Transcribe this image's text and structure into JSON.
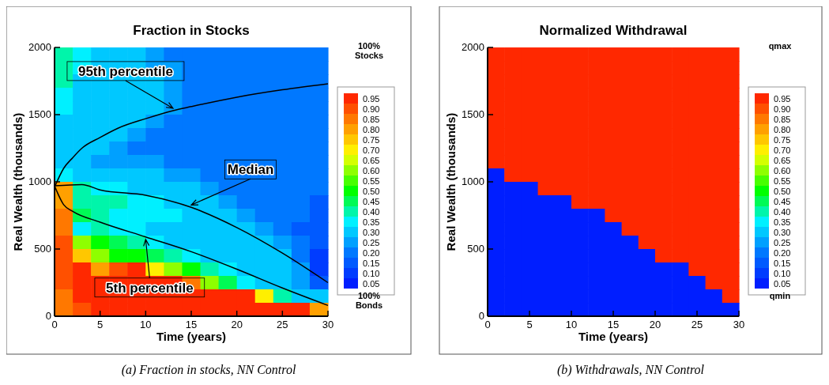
{
  "chart_data": [
    {
      "type": "heatmap",
      "title": "Fraction in Stocks",
      "xlabel": "Time (years)",
      "ylabel": "Real Wealth (thousands)",
      "xlim": [
        0,
        30
      ],
      "xticks": [
        0,
        5,
        10,
        15,
        20,
        25,
        30
      ],
      "ylim": [
        0,
        2000
      ],
      "yticks": [
        0,
        500,
        1000,
        1500,
        2000
      ],
      "clim": [
        0.025,
        0.975
      ],
      "cticks": [
        {
          "value": 0.05,
          "label": "0.05"
        },
        {
          "value": 0.1,
          "label": "0.10"
        },
        {
          "value": 0.15,
          "label": "0.15"
        },
        {
          "value": 0.2,
          "label": "0.20"
        },
        {
          "value": 0.25,
          "label": "0.25"
        },
        {
          "value": 0.3,
          "label": "0.30"
        },
        {
          "value": 0.35,
          "label": "0.35"
        },
        {
          "value": 0.4,
          "label": "0.40"
        },
        {
          "value": 0.45,
          "label": "0.45"
        },
        {
          "value": 0.5,
          "label": "0.50"
        },
        {
          "value": 0.55,
          "label": "0.55"
        },
        {
          "value": 0.6,
          "label": "0.60"
        },
        {
          "value": 0.65,
          "label": "0.65"
        },
        {
          "value": 0.7,
          "label": "0.70"
        },
        {
          "value": 0.75,
          "label": "0.75"
        },
        {
          "value": 0.8,
          "label": "0.80"
        },
        {
          "value": 0.85,
          "label": "0.85"
        },
        {
          "value": 0.9,
          "label": "0.90"
        },
        {
          "value": 0.95,
          "label": "0.95"
        }
      ],
      "x": [
        1,
        3,
        5,
        7,
        9,
        11,
        13,
        15,
        17,
        19,
        21,
        23,
        25,
        27,
        29
      ],
      "y": [
        1950,
        1850,
        1750,
        1650,
        1550,
        1450,
        1350,
        1250,
        1150,
        1050,
        950,
        850,
        750,
        650,
        550,
        450,
        350,
        250,
        150,
        50
      ],
      "cells": [
        [
          0.4,
          0.35,
          0.3,
          0.3,
          0.3,
          0.25,
          0.2,
          0.2,
          0.2,
          0.2,
          0.2,
          0.2,
          0.2,
          0.2,
          0.2
        ],
        [
          0.4,
          0.35,
          0.3,
          0.3,
          0.3,
          0.25,
          0.25,
          0.2,
          0.2,
          0.2,
          0.2,
          0.2,
          0.2,
          0.2,
          0.2
        ],
        [
          0.4,
          0.3,
          0.3,
          0.3,
          0.3,
          0.3,
          0.25,
          0.2,
          0.2,
          0.2,
          0.2,
          0.2,
          0.2,
          0.2,
          0.2
        ],
        [
          0.35,
          0.3,
          0.3,
          0.3,
          0.3,
          0.3,
          0.25,
          0.2,
          0.2,
          0.2,
          0.2,
          0.2,
          0.2,
          0.2,
          0.2
        ],
        [
          0.35,
          0.3,
          0.3,
          0.3,
          0.3,
          0.3,
          0.25,
          0.2,
          0.2,
          0.2,
          0.2,
          0.2,
          0.2,
          0.2,
          0.2
        ],
        [
          0.3,
          0.3,
          0.3,
          0.3,
          0.3,
          0.25,
          0.2,
          0.2,
          0.2,
          0.2,
          0.2,
          0.2,
          0.2,
          0.2,
          0.2
        ],
        [
          0.3,
          0.3,
          0.3,
          0.3,
          0.25,
          0.2,
          0.2,
          0.2,
          0.2,
          0.2,
          0.2,
          0.2,
          0.2,
          0.2,
          0.2
        ],
        [
          0.3,
          0.3,
          0.3,
          0.25,
          0.2,
          0.2,
          0.2,
          0.2,
          0.2,
          0.2,
          0.2,
          0.2,
          0.2,
          0.2,
          0.2
        ],
        [
          0.3,
          0.3,
          0.25,
          0.25,
          0.25,
          0.25,
          0.2,
          0.2,
          0.2,
          0.2,
          0.2,
          0.2,
          0.2,
          0.2,
          0.2
        ],
        [
          0.35,
          0.3,
          0.3,
          0.3,
          0.3,
          0.3,
          0.25,
          0.25,
          0.2,
          0.2,
          0.2,
          0.2,
          0.2,
          0.2,
          0.2
        ],
        [
          0.8,
          0.4,
          0.35,
          0.35,
          0.3,
          0.3,
          0.3,
          0.3,
          0.25,
          0.2,
          0.2,
          0.2,
          0.2,
          0.2,
          0.2
        ],
        [
          0.8,
          0.4,
          0.4,
          0.4,
          0.35,
          0.35,
          0.3,
          0.3,
          0.3,
          0.25,
          0.2,
          0.2,
          0.2,
          0.2,
          0.15
        ],
        [
          0.85,
          0.45,
          0.4,
          0.35,
          0.35,
          0.35,
          0.35,
          0.3,
          0.3,
          0.3,
          0.25,
          0.2,
          0.2,
          0.2,
          0.15
        ],
        [
          0.85,
          0.35,
          0.4,
          0.35,
          0.35,
          0.3,
          0.3,
          0.3,
          0.3,
          0.3,
          0.3,
          0.25,
          0.2,
          0.15,
          0.15
        ],
        [
          0.9,
          0.6,
          0.5,
          0.45,
          0.4,
          0.35,
          0.3,
          0.3,
          0.3,
          0.3,
          0.3,
          0.3,
          0.25,
          0.2,
          0.15
        ],
        [
          0.9,
          0.75,
          0.6,
          0.5,
          0.5,
          0.45,
          0.4,
          0.35,
          0.3,
          0.3,
          0.3,
          0.3,
          0.3,
          0.2,
          0.1
        ],
        [
          0.9,
          0.95,
          0.8,
          0.9,
          0.95,
          0.7,
          0.6,
          0.5,
          0.4,
          0.35,
          0.3,
          0.3,
          0.3,
          0.25,
          0.1
        ],
        [
          0.9,
          0.95,
          0.95,
          0.95,
          0.95,
          0.95,
          0.95,
          0.85,
          0.6,
          0.45,
          0.35,
          0.3,
          0.3,
          0.25,
          0.15
        ],
        [
          0.85,
          0.95,
          0.95,
          0.95,
          0.95,
          0.95,
          0.95,
          0.95,
          0.95,
          0.95,
          0.95,
          0.7,
          0.4,
          0.3,
          0.3
        ],
        [
          0.85,
          0.9,
          0.95,
          0.95,
          0.95,
          0.95,
          0.95,
          0.95,
          0.95,
          0.95,
          0.95,
          0.95,
          0.95,
          0.95,
          0.8
        ]
      ],
      "series": [
        {
          "type": "line",
          "name": "95th percentile",
          "color": "#000000",
          "x": [
            0,
            1,
            2,
            3,
            5,
            7,
            10,
            13,
            15,
            20,
            25,
            30
          ],
          "values": [
            960,
            1100,
            1180,
            1250,
            1330,
            1400,
            1470,
            1530,
            1560,
            1630,
            1685,
            1730
          ]
        },
        {
          "type": "line",
          "name": "Median",
          "color": "#000000",
          "x": [
            0,
            3,
            5,
            10,
            15,
            20,
            25,
            30
          ],
          "values": [
            970,
            980,
            940,
            900,
            810,
            660,
            470,
            250
          ]
        },
        {
          "type": "line",
          "name": "5th percentile",
          "color": "#000000",
          "x": [
            0,
            1,
            2,
            5,
            10,
            15,
            20,
            25,
            30
          ],
          "values": [
            970,
            830,
            780,
            700,
            590,
            480,
            350,
            210,
            80
          ]
        }
      ],
      "annotations": [
        "100% Stocks",
        "100% Bonds",
        "(a) Fraction in stocks, NN Control"
      ]
    },
    {
      "type": "heatmap",
      "title": "Normalized Withdrawal",
      "xlabel": "Time (years)",
      "ylabel": "Real Wealth (thousands)",
      "xlim": [
        0,
        30
      ],
      "xticks": [
        0,
        5,
        10,
        15,
        20,
        25,
        30
      ],
      "ylim": [
        0,
        2000
      ],
      "yticks": [
        0,
        500,
        1000,
        1500,
        2000
      ],
      "clim": [
        0.025,
        0.975
      ],
      "cticks": [
        {
          "value": 0.05,
          "label": "0.05"
        },
        {
          "value": 0.1,
          "label": "0.10"
        },
        {
          "value": 0.15,
          "label": "0.15"
        },
        {
          "value": 0.2,
          "label": "0.20"
        },
        {
          "value": 0.25,
          "label": "0.25"
        },
        {
          "value": 0.3,
          "label": "0.30"
        },
        {
          "value": 0.35,
          "label": "0.35"
        },
        {
          "value": 0.4,
          "label": "0.40"
        },
        {
          "value": 0.45,
          "label": "0.45"
        },
        {
          "value": 0.5,
          "label": "0.50"
        },
        {
          "value": 0.55,
          "label": "0.55"
        },
        {
          "value": 0.6,
          "label": "0.60"
        },
        {
          "value": 0.65,
          "label": "0.65"
        },
        {
          "value": 0.7,
          "label": "0.70"
        },
        {
          "value": 0.75,
          "label": "0.75"
        },
        {
          "value": 0.8,
          "label": "0.80"
        },
        {
          "value": 0.85,
          "label": "0.85"
        },
        {
          "value": 0.9,
          "label": "0.90"
        },
        {
          "value": 0.95,
          "label": "0.95"
        }
      ],
      "x": [
        1,
        3,
        5,
        7,
        9,
        11,
        13,
        15,
        17,
        19,
        21,
        23,
        25,
        27,
        29
      ],
      "y": [
        1950,
        1850,
        1750,
        1650,
        1550,
        1450,
        1350,
        1250,
        1150,
        1050,
        950,
        850,
        750,
        650,
        550,
        450,
        350,
        250,
        150,
        50
      ],
      "cells": [
        [
          0.95,
          0.95,
          0.95,
          0.95,
          0.95,
          0.95,
          0.95,
          0.95,
          0.95,
          0.95,
          0.95,
          0.95,
          0.95,
          0.95,
          0.95
        ],
        [
          0.95,
          0.95,
          0.95,
          0.95,
          0.95,
          0.95,
          0.95,
          0.95,
          0.95,
          0.95,
          0.95,
          0.95,
          0.95,
          0.95,
          0.95
        ],
        [
          0.95,
          0.95,
          0.95,
          0.95,
          0.95,
          0.95,
          0.95,
          0.95,
          0.95,
          0.95,
          0.95,
          0.95,
          0.95,
          0.95,
          0.95
        ],
        [
          0.95,
          0.95,
          0.95,
          0.95,
          0.95,
          0.95,
          0.95,
          0.95,
          0.95,
          0.95,
          0.95,
          0.95,
          0.95,
          0.95,
          0.95
        ],
        [
          0.95,
          0.95,
          0.95,
          0.95,
          0.95,
          0.95,
          0.95,
          0.95,
          0.95,
          0.95,
          0.95,
          0.95,
          0.95,
          0.95,
          0.95
        ],
        [
          0.95,
          0.95,
          0.95,
          0.95,
          0.95,
          0.95,
          0.95,
          0.95,
          0.95,
          0.95,
          0.95,
          0.95,
          0.95,
          0.95,
          0.95
        ],
        [
          0.95,
          0.95,
          0.95,
          0.95,
          0.95,
          0.95,
          0.95,
          0.95,
          0.95,
          0.95,
          0.95,
          0.95,
          0.95,
          0.95,
          0.95
        ],
        [
          0.95,
          0.95,
          0.95,
          0.95,
          0.95,
          0.95,
          0.95,
          0.95,
          0.95,
          0.95,
          0.95,
          0.95,
          0.95,
          0.95,
          0.95
        ],
        [
          0.95,
          0.95,
          0.95,
          0.95,
          0.95,
          0.95,
          0.95,
          0.95,
          0.95,
          0.95,
          0.95,
          0.95,
          0.95,
          0.95,
          0.95
        ],
        [
          0.05,
          0.95,
          0.95,
          0.95,
          0.95,
          0.95,
          0.95,
          0.95,
          0.95,
          0.95,
          0.95,
          0.95,
          0.95,
          0.95,
          0.95
        ],
        [
          0.05,
          0.05,
          0.05,
          0.95,
          0.95,
          0.95,
          0.95,
          0.95,
          0.95,
          0.95,
          0.95,
          0.95,
          0.95,
          0.95,
          0.95
        ],
        [
          0.05,
          0.05,
          0.05,
          0.05,
          0.05,
          0.95,
          0.95,
          0.95,
          0.95,
          0.95,
          0.95,
          0.95,
          0.95,
          0.95,
          0.95
        ],
        [
          0.05,
          0.05,
          0.05,
          0.05,
          0.05,
          0.05,
          0.05,
          0.95,
          0.95,
          0.95,
          0.95,
          0.95,
          0.95,
          0.95,
          0.95
        ],
        [
          0.05,
          0.05,
          0.05,
          0.05,
          0.05,
          0.05,
          0.05,
          0.05,
          0.95,
          0.95,
          0.95,
          0.95,
          0.95,
          0.95,
          0.95
        ],
        [
          0.05,
          0.05,
          0.05,
          0.05,
          0.05,
          0.05,
          0.05,
          0.05,
          0.05,
          0.95,
          0.95,
          0.95,
          0.95,
          0.95,
          0.95
        ],
        [
          0.05,
          0.05,
          0.05,
          0.05,
          0.05,
          0.05,
          0.05,
          0.05,
          0.05,
          0.05,
          0.95,
          0.95,
          0.95,
          0.95,
          0.95
        ],
        [
          0.05,
          0.05,
          0.05,
          0.05,
          0.05,
          0.05,
          0.05,
          0.05,
          0.05,
          0.05,
          0.05,
          0.05,
          0.95,
          0.95,
          0.95
        ],
        [
          0.05,
          0.05,
          0.05,
          0.05,
          0.05,
          0.05,
          0.05,
          0.05,
          0.05,
          0.05,
          0.05,
          0.05,
          0.05,
          0.95,
          0.95
        ],
        [
          0.05,
          0.05,
          0.05,
          0.05,
          0.05,
          0.05,
          0.05,
          0.05,
          0.05,
          0.05,
          0.05,
          0.05,
          0.05,
          0.05,
          0.95
        ],
        [
          0.05,
          0.05,
          0.05,
          0.05,
          0.05,
          0.05,
          0.05,
          0.05,
          0.05,
          0.05,
          0.05,
          0.05,
          0.05,
          0.05,
          0.05
        ]
      ],
      "annotations": [
        "qmax",
        "qmin",
        "(b) Withdrawals, NN Control"
      ]
    }
  ]
}
